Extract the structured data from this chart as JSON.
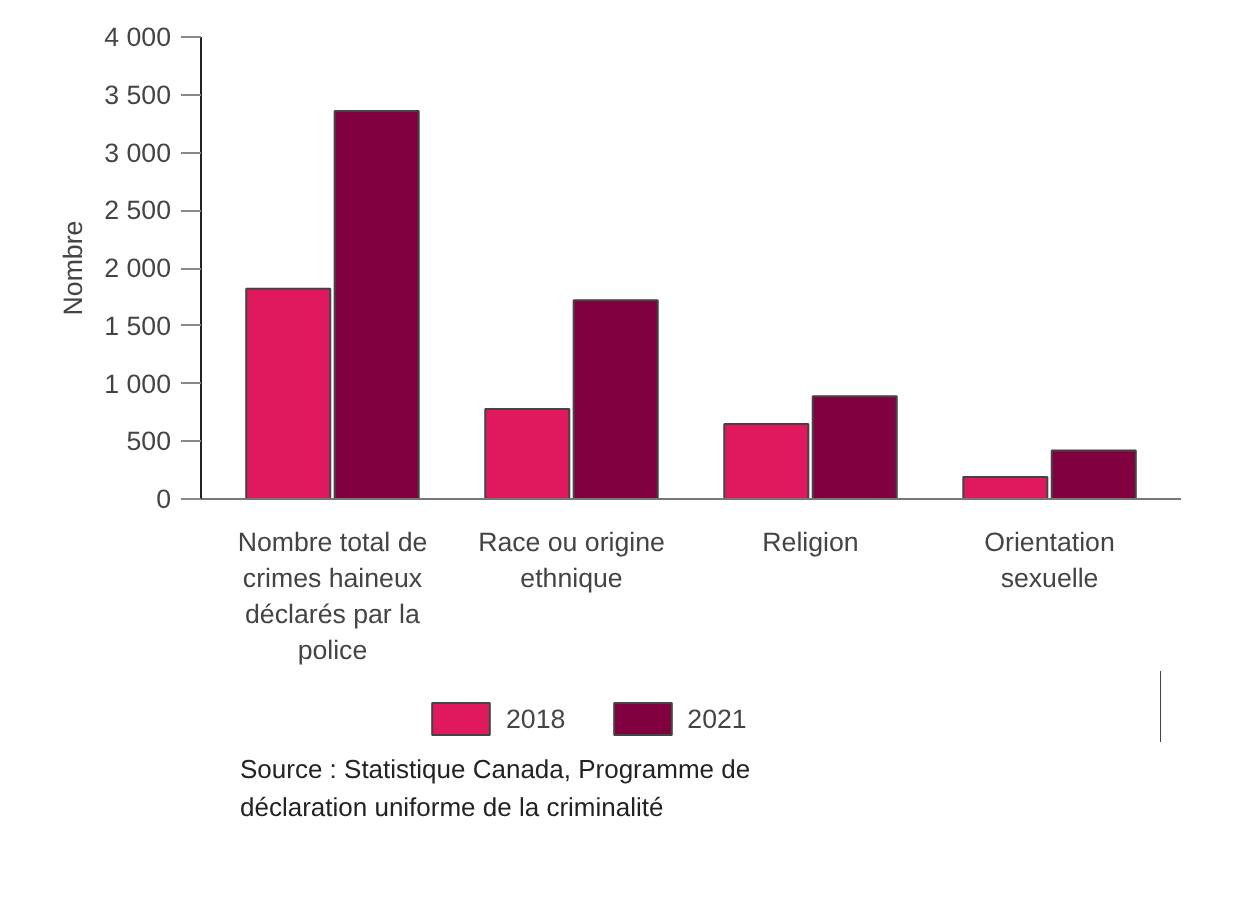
{
  "chart_data": {
    "type": "bar",
    "ylabel": "Nombre",
    "categories": [
      "Nombre total de crimes haineux déclarés par la police",
      "Race ou origine ethnique",
      "Religion",
      "Orientation sexuelle"
    ],
    "series": [
      {
        "name": "2018",
        "color": "#e0195f",
        "values": [
          1820,
          780,
          650,
          190
        ]
      },
      {
        "name": "2021",
        "color": "#800040",
        "values": [
          3360,
          1720,
          890,
          420
        ]
      }
    ],
    "ylim": [
      0,
      4000
    ],
    "yticks": [
      {
        "value": 0,
        "label": "0"
      },
      {
        "value": 500,
        "label": "500"
      },
      {
        "value": 1000,
        "label": "1 000"
      },
      {
        "value": 1500,
        "label": "1 500"
      },
      {
        "value": 2000,
        "label": "2 000"
      },
      {
        "value": 2500,
        "label": "2 500"
      },
      {
        "value": 3000,
        "label": "3 000"
      },
      {
        "value": 3500,
        "label": "3 500"
      },
      {
        "value": 4000,
        "label": "4 000"
      }
    ],
    "grid": false,
    "legend": "bottom left",
    "annotations": [
      "Source : Statistique Canada, Programme de déclaration uniforme de la criminalité"
    ]
  }
}
